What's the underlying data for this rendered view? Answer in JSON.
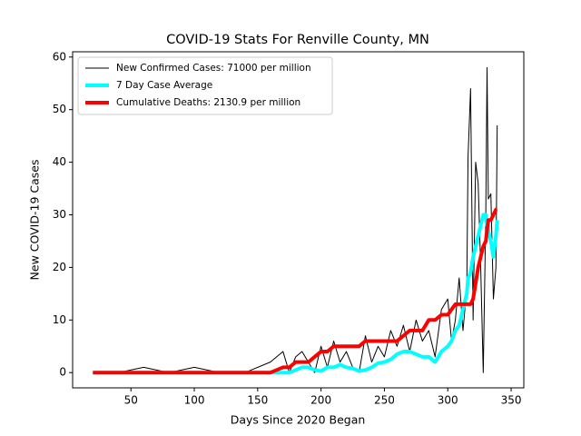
{
  "chart_data": {
    "type": "line",
    "title": "COVID-19 Stats For Renville County, MN",
    "xlabel": "Days Since 2020 Began",
    "ylabel": "New COVID-19 Cases",
    "x": [
      20,
      40,
      60,
      80,
      100,
      120,
      140,
      160,
      170,
      175,
      180,
      185,
      190,
      195,
      200,
      205,
      210,
      215,
      220,
      225,
      230,
      235,
      240,
      245,
      250,
      255,
      260,
      265,
      270,
      275,
      280,
      285,
      290,
      295,
      300,
      303,
      306,
      309,
      312,
      315,
      316,
      318,
      320,
      322,
      324,
      326,
      328,
      330,
      331,
      332,
      334,
      336,
      338,
      339
    ],
    "series": [
      {
        "name": "New Confirmed Cases: 71000 per million",
        "color": "#000000",
        "linewidth": 1,
        "values": [
          0,
          0,
          1,
          0,
          1,
          0,
          0,
          2,
          4,
          0,
          3,
          4,
          2,
          0,
          5,
          1,
          6,
          2,
          4,
          1,
          0,
          7,
          2,
          5,
          3,
          8,
          5,
          9,
          4,
          10,
          6,
          8,
          3,
          12,
          14,
          6,
          10,
          18,
          8,
          16,
          41,
          54,
          10,
          40,
          36,
          20,
          0,
          30,
          58,
          33,
          34,
          14,
          20,
          47
        ]
      },
      {
        "name": "7 Day Case Average",
        "color": "#00ffff",
        "linewidth": 4,
        "values": [
          0,
          0,
          0,
          0,
          0,
          0,
          0,
          0,
          0,
          0,
          0.5,
          1,
          1,
          0.5,
          0.3,
          1,
          1,
          1.5,
          1,
          0.8,
          0.3,
          0.5,
          1,
          1.8,
          2,
          2.5,
          3.5,
          4,
          4,
          3.5,
          3,
          3,
          2,
          4,
          5,
          6,
          8,
          9,
          12,
          15,
          18,
          19,
          22,
          24,
          26,
          28,
          30,
          30,
          28,
          27,
          25,
          22,
          26,
          29
        ]
      },
      {
        "name": "Cumulative Deaths: 2130.9 per million",
        "color": "#ff0000",
        "linewidth": 4,
        "values": [
          0,
          0,
          0,
          0,
          0,
          0,
          0,
          0,
          1,
          1,
          2,
          2,
          2,
          3,
          4,
          4,
          5,
          5,
          5,
          5,
          5,
          6,
          6,
          6,
          6,
          6,
          6,
          7,
          8,
          8,
          8,
          10,
          10,
          11,
          11,
          12,
          13,
          13,
          13,
          13,
          13,
          13,
          14,
          17,
          20,
          22,
          24,
          25,
          27,
          29,
          29,
          30,
          31,
          31
        ]
      }
    ],
    "xlim": [
      4,
      360
    ],
    "xticks": [
      50,
      100,
      150,
      200,
      250,
      300,
      350
    ],
    "ylim": [
      -2.9,
      61
    ],
    "yticks": [
      0,
      10,
      20,
      30,
      40,
      50,
      60
    ],
    "legend": "upper left"
  }
}
